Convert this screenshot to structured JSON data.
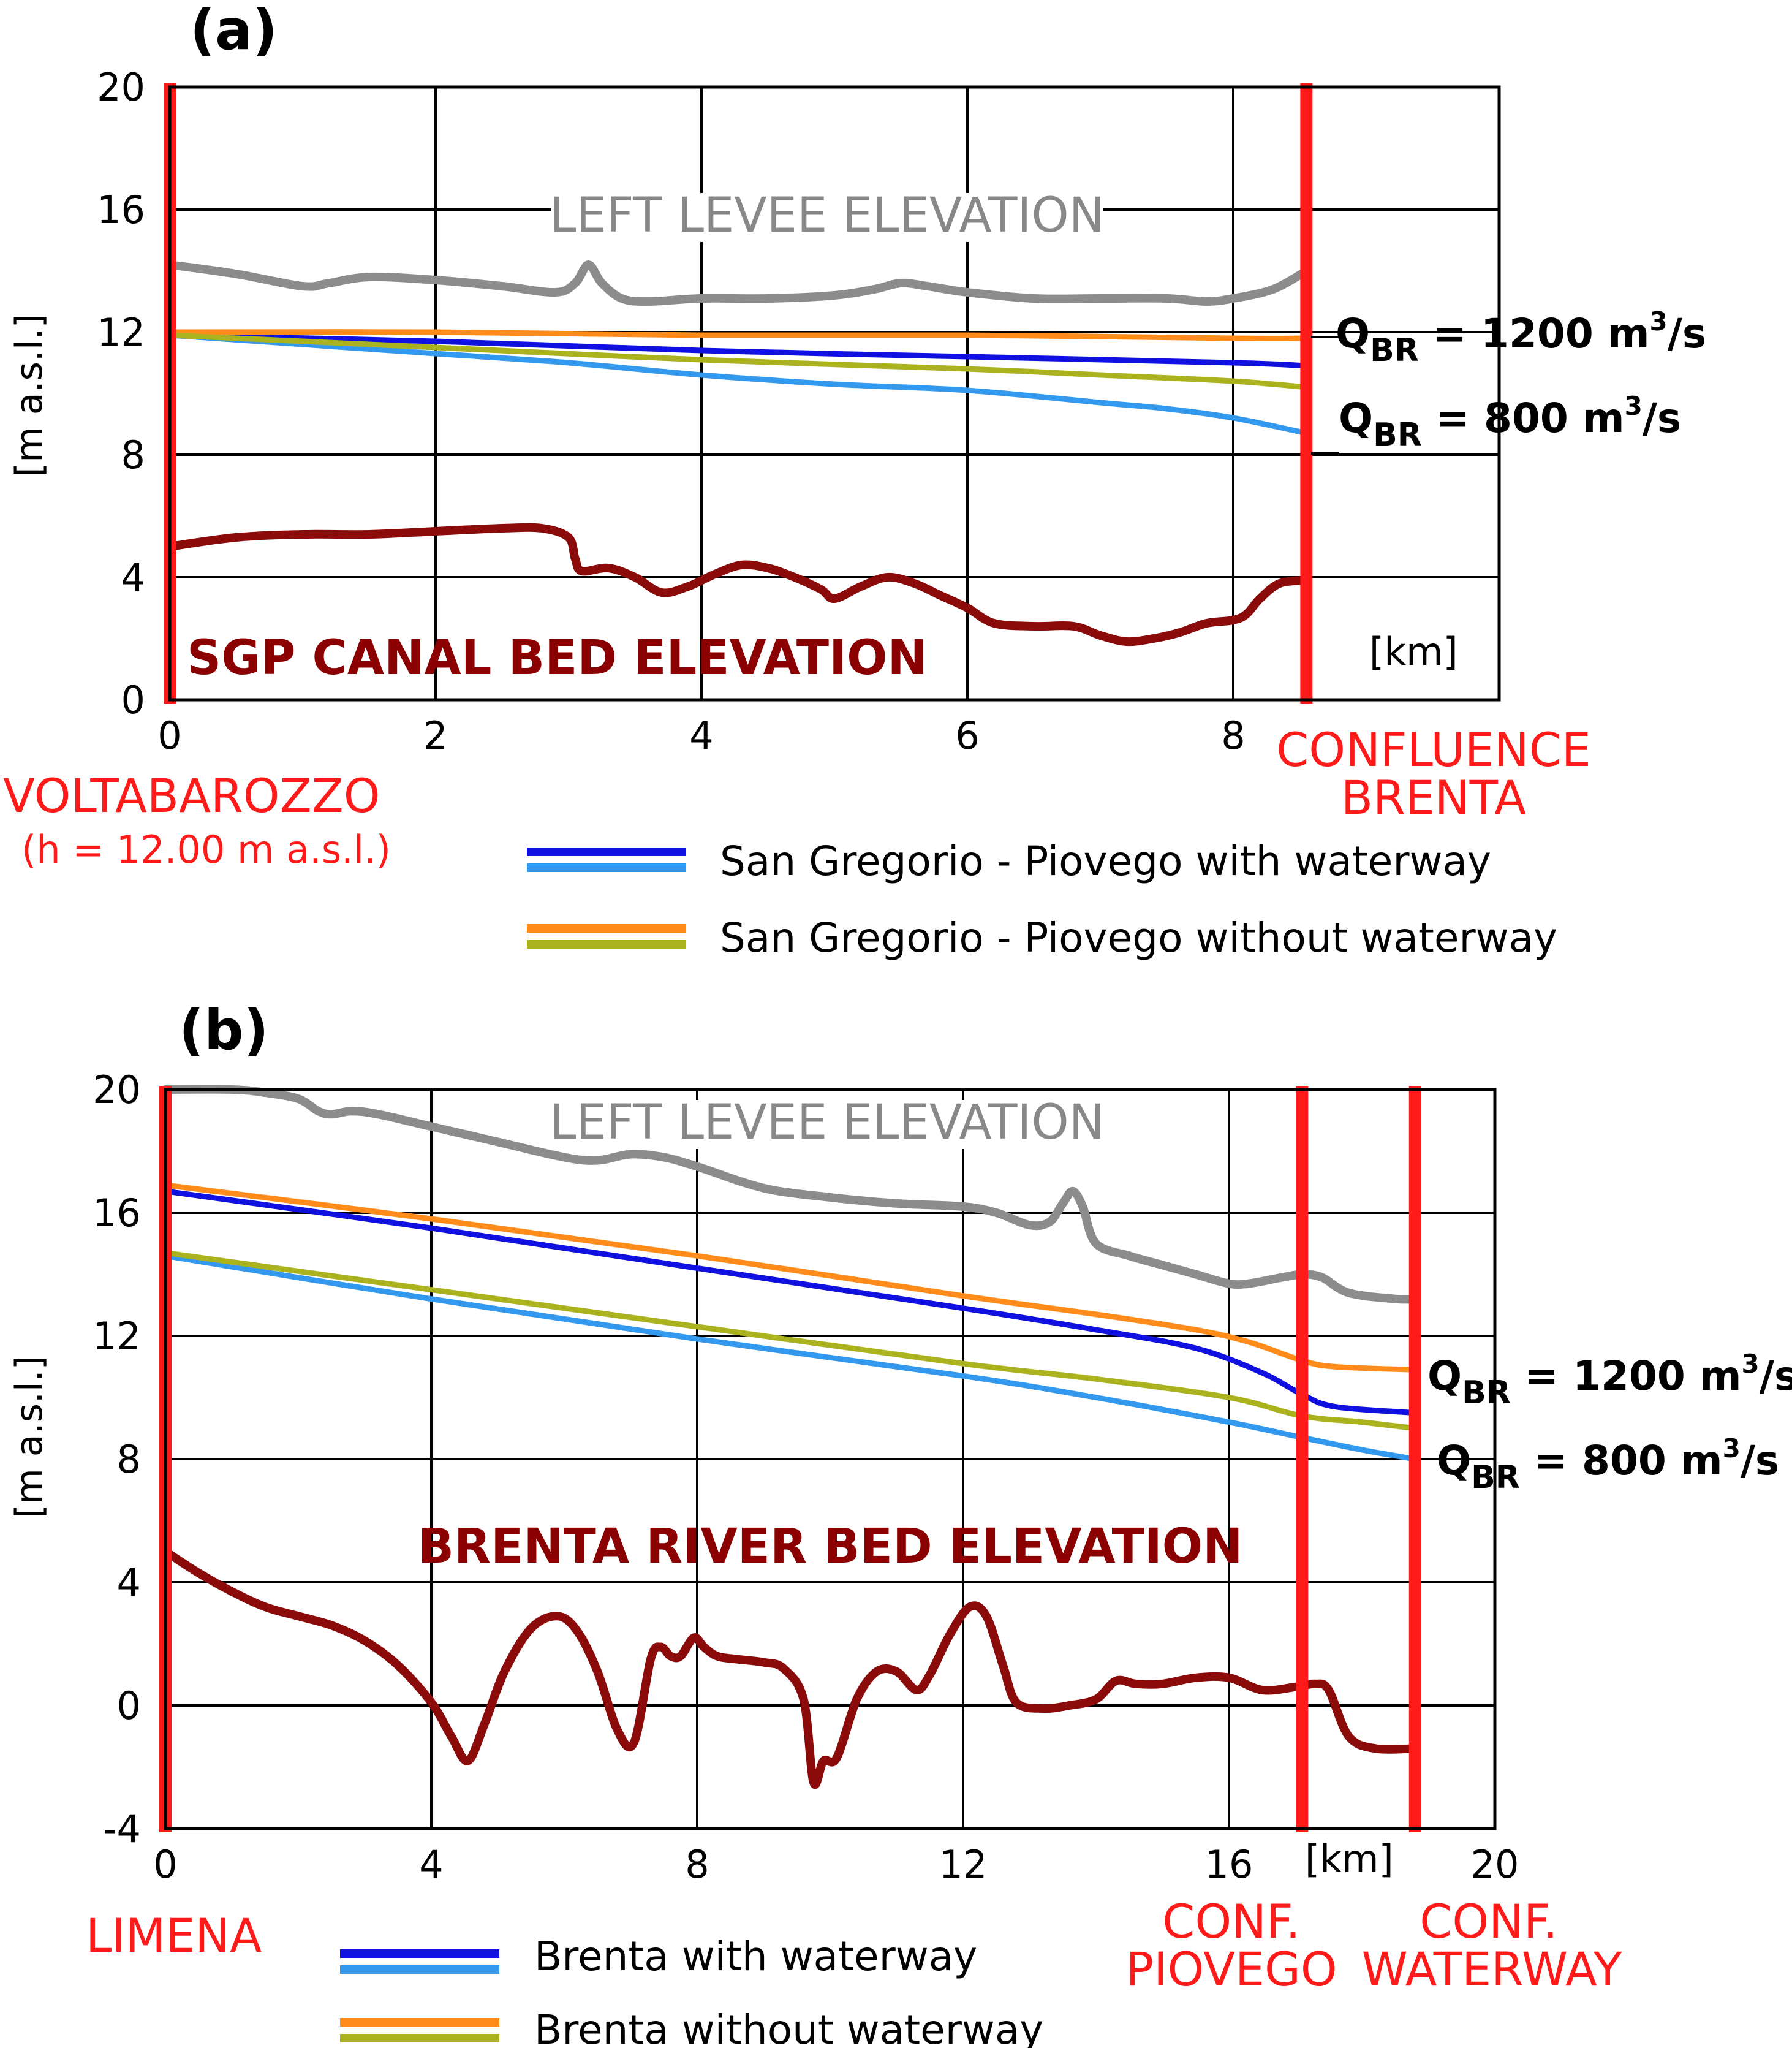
{
  "chart_data": [
    {
      "panel": "(a)",
      "type": "line",
      "ylabel": "[m a.s.l.]",
      "xunit_label": "[km]",
      "xlim": [
        0,
        10
      ],
      "ylim": [
        0,
        20
      ],
      "x_ticks": [
        "0",
        "2",
        "4",
        "6",
        "8"
      ],
      "y_ticks": [
        "0",
        "4",
        "8",
        "12",
        "16",
        "20"
      ],
      "levee_label": "LEFT LEVEE ELEVATION",
      "bed_label": "SGP CANAL BED ELEVATION",
      "start_label": "VOLTABAROZZO",
      "start_sub_label": "(h = 12.00 m a.s.l.)",
      "end_label_1": "CONFLUENCE",
      "end_label_2": "BRENTA",
      "q_high": {
        "main": "Q",
        "sub": "BR",
        "rest": " = 1200 m",
        "sup": "3",
        "tail": "/s"
      },
      "q_low": {
        "main": "Q",
        "sub": "BR",
        "rest": " = 800 m",
        "sup": "3",
        "tail": "/s"
      },
      "vertical_markers_km": [
        0,
        8.55
      ],
      "legend": [
        {
          "label": "San Gregorio - Piovego with waterway",
          "colors": [
            "#1010e0",
            "#3399ee"
          ]
        },
        {
          "label": "San Gregorio - Piovego without waterway",
          "colors": [
            "#ff8c1a",
            "#aab21e"
          ]
        }
      ],
      "series": [
        {
          "name": "Left levee elevation",
          "color": "#8c8c8c",
          "x": [
            0,
            0.5,
            1.0,
            1.2,
            1.5,
            2.0,
            2.5,
            2.9,
            3.05,
            3.15,
            3.25,
            3.4,
            3.6,
            4.0,
            4.5,
            5.0,
            5.3,
            5.5,
            5.7,
            6.0,
            6.5,
            7.0,
            7.5,
            7.8,
            8.0,
            8.3,
            8.55
          ],
          "y": [
            14.2,
            13.9,
            13.5,
            13.6,
            13.8,
            13.7,
            13.5,
            13.3,
            13.6,
            14.2,
            13.6,
            13.1,
            13.0,
            13.1,
            13.1,
            13.2,
            13.4,
            13.6,
            13.5,
            13.3,
            13.1,
            13.1,
            13.1,
            13.0,
            13.1,
            13.4,
            14.0
          ]
        },
        {
          "name": "With waterway, Q_BR = 1200",
          "color": "#1010e0",
          "x": [
            0,
            2,
            4,
            6,
            8,
            8.55
          ],
          "y": [
            11.9,
            11.7,
            11.4,
            11.2,
            11.0,
            10.9
          ]
        },
        {
          "name": "With waterway, Q_BR = 800",
          "color": "#3399ee",
          "x": [
            0,
            1,
            2,
            3,
            4,
            5,
            6,
            7,
            7.5,
            8,
            8.55
          ],
          "y": [
            11.9,
            11.6,
            11.3,
            11.0,
            10.6,
            10.3,
            10.1,
            9.7,
            9.5,
            9.2,
            8.7
          ]
        },
        {
          "name": "Without waterway, Q_BR = 1200",
          "color": "#ff8c1a",
          "x": [
            0,
            2,
            4,
            6,
            8,
            8.55
          ],
          "y": [
            12.0,
            12.0,
            11.9,
            11.9,
            11.8,
            11.8
          ]
        },
        {
          "name": "Without waterway, Q_BR = 800",
          "color": "#aab21e",
          "x": [
            0,
            2,
            4,
            6,
            7,
            8,
            8.55
          ],
          "y": [
            11.9,
            11.5,
            11.1,
            10.8,
            10.6,
            10.4,
            10.2
          ]
        },
        {
          "name": "SGP canal bed elevation",
          "color": "#8b0a0a",
          "x": [
            0,
            0.5,
            1.0,
            1.5,
            2.0,
            2.5,
            2.8,
            3.0,
            3.05,
            3.1,
            3.3,
            3.5,
            3.7,
            3.9,
            4.1,
            4.3,
            4.5,
            4.7,
            4.9,
            5.0,
            5.2,
            5.4,
            5.6,
            5.8,
            6.0,
            6.2,
            6.5,
            6.8,
            7.0,
            7.2,
            7.4,
            7.6,
            7.8,
            8.0,
            8.1,
            8.2,
            8.35,
            8.55
          ],
          "y": [
            5.0,
            5.3,
            5.4,
            5.4,
            5.5,
            5.6,
            5.6,
            5.3,
            4.6,
            4.2,
            4.3,
            4.0,
            3.5,
            3.7,
            4.1,
            4.4,
            4.3,
            4.0,
            3.6,
            3.3,
            3.7,
            4.0,
            3.8,
            3.4,
            3.0,
            2.5,
            2.4,
            2.4,
            2.1,
            1.9,
            2.0,
            2.2,
            2.5,
            2.6,
            2.8,
            3.3,
            3.8,
            3.9
          ]
        }
      ]
    },
    {
      "panel": "(b)",
      "type": "line",
      "ylabel": "[m a.s.l.]",
      "xunit_label": "[km]",
      "xlim": [
        0,
        20
      ],
      "ylim": [
        -4,
        20
      ],
      "x_ticks": [
        "0",
        "4",
        "8",
        "12",
        "16",
        "20"
      ],
      "y_ticks": [
        "-4",
        "0",
        "4",
        "8",
        "12",
        "16",
        "20"
      ],
      "levee_label": "LEFT LEVEE ELEVATION",
      "bed_label": "BRENTA RIVER BED ELEVATION",
      "start_label": "LIMENA",
      "conf1_label_1": "CONF.",
      "conf1_label_2": "PIOVEGO",
      "conf2_label_1": "CONF.",
      "conf2_label_2": "WATERWAY",
      "q_high": {
        "main": "Q",
        "sub": "BR",
        "rest": " = 1200 m",
        "sup": "3",
        "tail": "/s"
      },
      "q_low": {
        "main": "Q",
        "sub": "BR",
        "rest": " = 800 m",
        "sup": "3",
        "tail": "/s"
      },
      "vertical_markers_km": [
        0,
        17.1,
        18.8
      ],
      "legend": [
        {
          "label": "Brenta with waterway",
          "colors": [
            "#1010e0",
            "#3399ee"
          ]
        },
        {
          "label": "Brenta without waterway",
          "colors": [
            "#ff8c1a",
            "#aab21e"
          ]
        }
      ],
      "series": [
        {
          "name": "Left levee elevation",
          "color": "#8c8c8c",
          "x": [
            0,
            1,
            1.5,
            2.0,
            2.3,
            2.5,
            2.8,
            3.2,
            4,
            5,
            6,
            6.5,
            7.0,
            7.5,
            8,
            9,
            10,
            11,
            12,
            12.5,
            13.0,
            13.3,
            13.5,
            13.65,
            13.8,
            14.0,
            14.5,
            15,
            15.5,
            16,
            16.3,
            16.8,
            17.1,
            17.4,
            17.8,
            18.5,
            18.8
          ],
          "y": [
            20.0,
            20.0,
            19.9,
            19.7,
            19.3,
            19.2,
            19.3,
            19.2,
            18.8,
            18.3,
            17.8,
            17.7,
            17.9,
            17.8,
            17.5,
            16.8,
            16.5,
            16.3,
            16.2,
            16.0,
            15.6,
            15.7,
            16.3,
            16.7,
            16.2,
            15.0,
            14.6,
            14.3,
            14.0,
            13.7,
            13.7,
            13.9,
            14.0,
            13.9,
            13.4,
            13.2,
            13.2
          ]
        },
        {
          "name": "With waterway, Q_BR = 1200",
          "color": "#1010e0",
          "x": [
            0,
            4,
            8,
            12,
            14,
            15.5,
            16.5,
            17.1,
            17.6,
            18.8
          ],
          "y": [
            16.7,
            15.5,
            14.2,
            12.9,
            12.2,
            11.6,
            10.8,
            10.1,
            9.7,
            9.5
          ]
        },
        {
          "name": "With waterway, Q_BR = 800",
          "color": "#3399ee",
          "x": [
            0,
            4,
            8,
            12,
            14,
            16,
            17.1,
            18,
            18.8
          ],
          "y": [
            14.6,
            13.2,
            11.9,
            10.7,
            10.0,
            9.2,
            8.7,
            8.3,
            8.0
          ]
        },
        {
          "name": "Without waterway, Q_BR = 1200",
          "color": "#ff8c1a",
          "x": [
            0,
            4,
            8,
            12,
            14,
            15.5,
            16.3,
            17.1,
            17.6,
            18.8
          ],
          "y": [
            16.9,
            15.8,
            14.6,
            13.3,
            12.7,
            12.2,
            11.8,
            11.2,
            11.0,
            10.9
          ]
        },
        {
          "name": "Without waterway, Q_BR = 800",
          "color": "#aab21e",
          "x": [
            0,
            4,
            8,
            12,
            14,
            16,
            17.1,
            18,
            18.8
          ],
          "y": [
            14.7,
            13.5,
            12.3,
            11.1,
            10.6,
            10.0,
            9.4,
            9.2,
            9.0
          ]
        },
        {
          "name": "Brenta river bed elevation",
          "color": "#8b0a0a",
          "x": [
            0,
            0.5,
            1,
            1.5,
            2.0,
            2.5,
            3.0,
            3.5,
            4.0,
            4.3,
            4.55,
            4.8,
            5.1,
            5.5,
            5.9,
            6.2,
            6.5,
            6.8,
            7.05,
            7.3,
            7.45,
            7.6,
            7.75,
            7.95,
            8.1,
            8.3,
            8.6,
            9.0,
            9.3,
            9.6,
            9.75,
            9.9,
            10.1,
            10.4,
            10.7,
            11.0,
            11.3,
            11.5,
            11.8,
            12.1,
            12.35,
            12.6,
            12.8,
            13.2,
            13.6,
            14.0,
            14.3,
            14.6,
            15,
            15.5,
            16.0,
            16.5,
            17.0,
            17.3,
            17.5,
            17.8,
            18.2,
            18.8
          ],
          "y": [
            5.0,
            4.3,
            3.7,
            3.2,
            2.9,
            2.6,
            2.1,
            1.3,
            0.1,
            -1.0,
            -1.8,
            -0.6,
            1.1,
            2.5,
            2.9,
            2.4,
            1.1,
            -0.8,
            -1.2,
            1.5,
            1.9,
            1.6,
            1.6,
            2.2,
            1.9,
            1.6,
            1.5,
            1.4,
            1.2,
            0.2,
            -2.5,
            -1.8,
            -1.7,
            0.2,
            1.1,
            1.1,
            0.5,
            1.0,
            2.3,
            3.2,
            2.9,
            1.3,
            0.1,
            -0.1,
            0.0,
            0.2,
            0.8,
            0.7,
            0.7,
            0.9,
            0.9,
            0.5,
            0.6,
            0.7,
            0.5,
            -1.0,
            -1.4,
            -1.4
          ]
        }
      ]
    }
  ]
}
